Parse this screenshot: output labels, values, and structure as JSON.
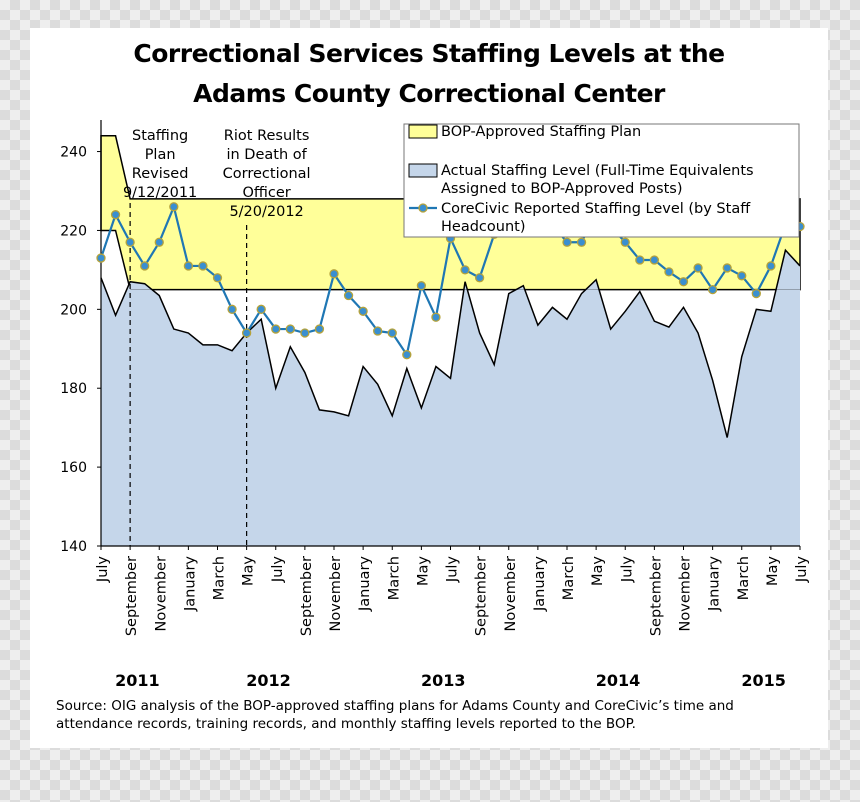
{
  "title_lines": [
    "Correctional Services Staffing Levels at the",
    "Adams County Correctional Center"
  ],
  "source": "Source:  OIG analysis of the BOP-approved staffing plans for Adams County and CoreCivic’s time and attendance records, training records, and monthly staffing levels reported to the BOP.",
  "colors": {
    "plan_fill": "#ffff99",
    "actual_fill": "#c5d6ea",
    "corecivic_line": "#1f77b4",
    "marker_fill": "#3a8fd0",
    "marker_edge": "#b5a23a"
  },
  "chart_data": {
    "type": "line",
    "ylim": [
      140,
      248
    ],
    "yticks": [
      "140",
      "160",
      "180",
      "200",
      "220",
      "240"
    ],
    "x_month_labels": [
      "July",
      "September",
      "November",
      "January",
      "March",
      "May",
      "July",
      "September",
      "November",
      "January",
      "March",
      "May",
      "July",
      "September",
      "November",
      "January",
      "March",
      "May",
      "July",
      "September",
      "November",
      "January",
      "March",
      "May",
      "July"
    ],
    "year_labels": [
      {
        "text": "2011",
        "month_index": 2.5
      },
      {
        "text": "2012",
        "month_index": 11.5
      },
      {
        "text": "2013",
        "month_index": 23.5
      },
      {
        "text": "2014",
        "month_index": 35.5
      },
      {
        "text": "2015",
        "month_index": 45.5
      }
    ],
    "annotations": [
      {
        "month_index": 2,
        "lines": [
          "Staffing",
          "Plan",
          "Revised",
          "9/12/2011"
        ]
      },
      {
        "month_index": 10,
        "lines": [
          "Riot Results",
          "in Death of",
          "Correctional",
          "Officer",
          "5/20/2012"
        ]
      }
    ],
    "legend": {
      "placement": "top-right",
      "entries": [
        {
          "kind": "plan",
          "lines": [
            "BOP-Approved Staffing Plan"
          ]
        },
        {
          "kind": "actual",
          "lines": [
            "Actual Staffing Level (Full-Time Equivalents",
            "Assigned to BOP-Approved Posts)"
          ]
        },
        {
          "kind": "corecivic",
          "lines": [
            "CoreCivic Reported Staffing Level (by Staff",
            "Headcount)"
          ]
        }
      ]
    },
    "series": [
      {
        "name": "BOP-Approved Staffing Plan",
        "kind": "band",
        "upper": [
          {
            "x": 0,
            "y": 244
          },
          {
            "x": 1,
            "y": 244
          },
          {
            "x": 2,
            "y": 228
          },
          {
            "x": 48,
            "y": 228
          }
        ],
        "lower": [
          {
            "x": 0,
            "y": 220
          },
          {
            "x": 1,
            "y": 220
          },
          {
            "x": 2,
            "y": 205
          },
          {
            "x": 48,
            "y": 205
          }
        ]
      },
      {
        "name": "Actual Staffing Level (Full-Time Equivalents Assigned to BOP-Approved Posts)",
        "kind": "area",
        "values": [
          208,
          198.5,
          207,
          206.5,
          203.5,
          195,
          194,
          191,
          191,
          189.5,
          194,
          197.5,
          180,
          190.5,
          184,
          174.5,
          174,
          173,
          185.5,
          181,
          173,
          185,
          175,
          185.5,
          182.5,
          207,
          194,
          186,
          204,
          206,
          196,
          200.5,
          197.5,
          204,
          207.5,
          195,
          199.5,
          204.5,
          197,
          195.5,
          200.5,
          194,
          182,
          167.5,
          188,
          200,
          199.5,
          215,
          211
        ]
      },
      {
        "name": "CoreCivic Reported Staffing Level (by Staff Headcount)",
        "kind": "line",
        "values": [
          213,
          224,
          217,
          211,
          217,
          226,
          211,
          211,
          208,
          200,
          194,
          200,
          195,
          195,
          194,
          195,
          209,
          203.5,
          199.5,
          194.5,
          194,
          188.5,
          206,
          198,
          218,
          210,
          208,
          219,
          225,
          222,
          221.5,
          221.5,
          217,
          217,
          224.5,
          221,
          217,
          212.5,
          212.5,
          209.5,
          207,
          210.5,
          205,
          210.5,
          208.5,
          204,
          211,
          221.5,
          221
        ]
      }
    ]
  }
}
